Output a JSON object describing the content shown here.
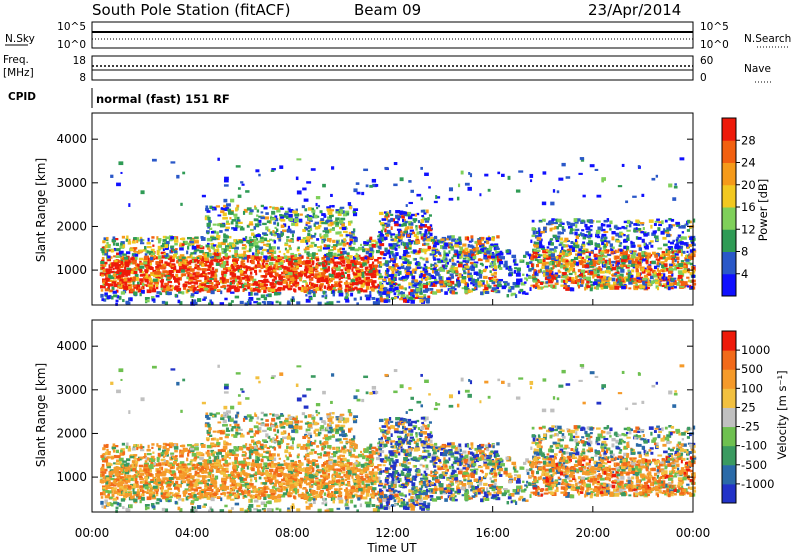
{
  "header": {
    "station": "South Pole Station (fitACF)",
    "beam": "Beam 09",
    "date": "23/Apr/2014"
  },
  "noise_panel": {
    "left_label": "N.Sky",
    "left_top_tick": "10^5",
    "left_bottom_tick": "10^0",
    "right_label": "N.Search",
    "right_top_tick": "10^5",
    "right_bottom_tick": "10^0"
  },
  "freq_panel": {
    "left_label_1": "Freq.",
    "left_label_2": "[MHz]",
    "left_top_tick": "18",
    "left_bottom_tick": "8",
    "right_label": "Nave",
    "right_top_tick": "60",
    "right_bottom_tick": "0"
  },
  "cpid": {
    "label": "CPID",
    "text": "normal (fast) 151 RF"
  },
  "chart_data": [
    {
      "type": "heatmap",
      "name": "power",
      "ylabel": "Slant Range [km]",
      "xlabel": "",
      "xlim": [
        0,
        24
      ],
      "ylim": [
        200,
        4600
      ],
      "y_ticks": [
        "1000",
        "2000",
        "3000",
        "4000"
      ],
      "colorbar": {
        "label": "Power [dB]",
        "ticks": [
          "4",
          "8",
          "12",
          "16",
          "20",
          "24",
          "28"
        ],
        "colors": [
          "#1010ff",
          "#2a58c8",
          "#2f9b55",
          "#7fd05a",
          "#f2c820",
          "#f59a1a",
          "#f26010",
          "#ee1a0a"
        ]
      },
      "bands": [
        {
          "t0": 0.2,
          "t1": 11.4,
          "r0": 600,
          "r1": 1500,
          "level": "high"
        },
        {
          "t0": 11.4,
          "t1": 13.5,
          "r0": 300,
          "r1": 2500,
          "level": "mixed"
        },
        {
          "t0": 13.5,
          "t1": 16.0,
          "r0": 500,
          "r1": 1800,
          "level": "mixed"
        },
        {
          "t0": 17.5,
          "t1": 24.0,
          "r0": 600,
          "r1": 2200,
          "level": "medium"
        }
      ]
    },
    {
      "type": "heatmap",
      "name": "velocity",
      "ylabel": "Slant Range [km]",
      "xlabel": "Time UT",
      "xlim": [
        0,
        24
      ],
      "ylim": [
        200,
        4600
      ],
      "x_ticks": [
        "00:00",
        "04:00",
        "08:00",
        "12:00",
        "16:00",
        "20:00",
        "00:00"
      ],
      "y_ticks": [
        "1000",
        "2000",
        "3000",
        "4000"
      ],
      "colorbar": {
        "label": "Velocity [m s⁻¹]",
        "ticks": [
          "1000",
          "500",
          "100",
          "25",
          "-25",
          "-100",
          "-500",
          "-1000"
        ],
        "colors": [
          "#2233c8",
          "#2a6aa8",
          "#3a9a60",
          "#6ec050",
          "#c0c0c0",
          "#f2c040",
          "#f59a2a",
          "#f26a1a",
          "#ee1a0a"
        ]
      }
    }
  ]
}
